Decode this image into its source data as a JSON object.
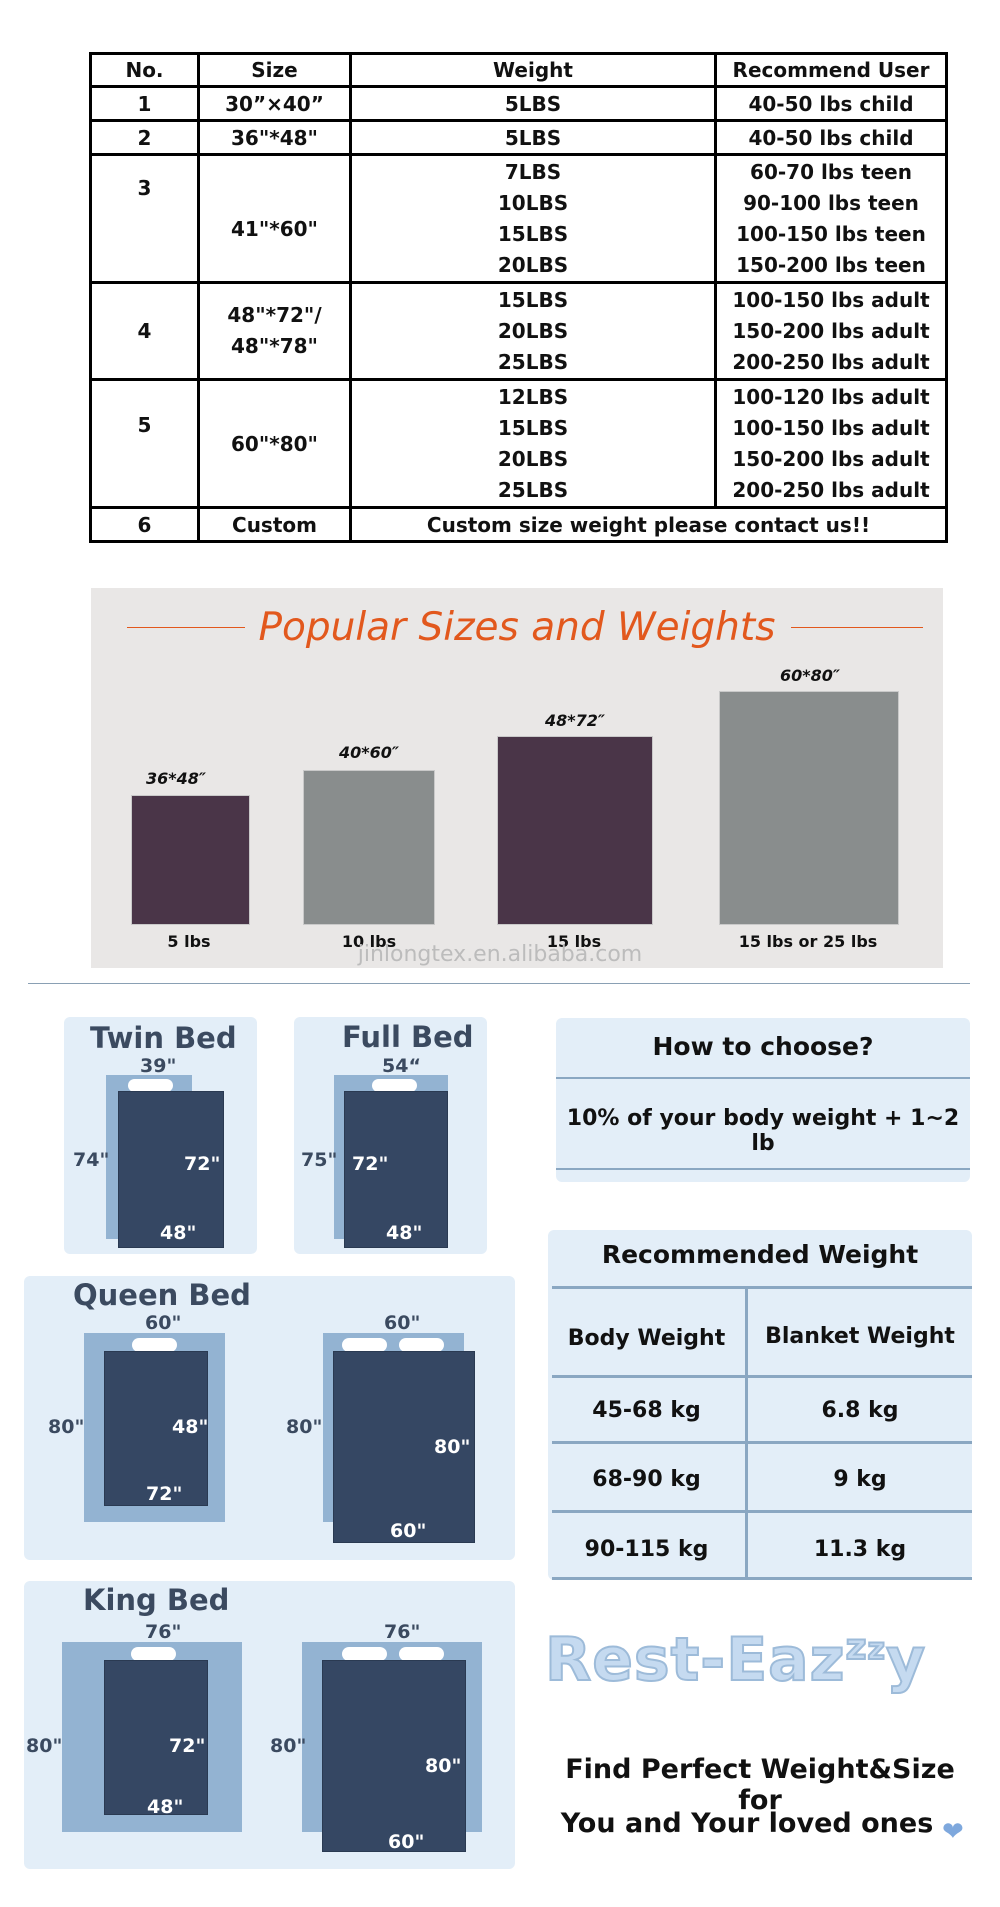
{
  "size_table": {
    "headers": [
      "No.",
      "Size",
      "Weight",
      "Recommend User"
    ],
    "rows": [
      {
        "no": "1",
        "size": "30”×40”",
        "weights": [
          "5LBS"
        ],
        "users": [
          "40-50 lbs child"
        ]
      },
      {
        "no": "2",
        "size": "36\"*48\"",
        "weights": [
          "5LBS"
        ],
        "users": [
          "40-50 lbs child"
        ]
      },
      {
        "no": "3",
        "size": "41\"*60\"",
        "weights": [
          "7LBS",
          "10LBS",
          "15LBS",
          "20LBS"
        ],
        "users": [
          "60-70 lbs teen",
          "90-100 lbs teen",
          "100-150 lbs teen",
          "150-200 lbs teen"
        ]
      },
      {
        "no": "4",
        "size_lines": [
          "48\"*72\"/",
          "48\"*78\""
        ],
        "weights": [
          "15LBS",
          "20LBS",
          "25LBS"
        ],
        "users": [
          "100-150 lbs adult",
          "150-200 lbs adult",
          "200-250 lbs adult"
        ]
      },
      {
        "no": "5",
        "size": "60\"*80\"",
        "weights": [
          "12LBS",
          "15LBS",
          "20LBS",
          "25LBS"
        ],
        "users": [
          "100-120 lbs adult",
          "100-150 lbs adult",
          "150-200 lbs adult",
          "200-250 lbs adult"
        ]
      },
      {
        "no": "6",
        "size": "Custom",
        "note": "Custom size weight please contact us!!"
      }
    ]
  },
  "popular": {
    "title": "Popular Sizes and Weights",
    "items": [
      {
        "size": "36*48″",
        "weight": "5 lbs",
        "color": "#4a3548"
      },
      {
        "size": "40*60″",
        "weight": "10 lbs",
        "color": "#898d8d"
      },
      {
        "size": "48*72″",
        "weight": "15 lbs",
        "color": "#4a3548"
      },
      {
        "size": "60*80″",
        "weight": "15 lbs or 25 lbs",
        "color": "#898d8d"
      }
    ]
  },
  "watermark": "jinlongtex.en.alibaba.com",
  "beds": {
    "twin": {
      "title": "Twin Bed",
      "bed_width": "39\"",
      "bed_length": "74\"",
      "blanket_length": "72\"",
      "blanket_width": "48\""
    },
    "full": {
      "title": "Full Bed",
      "bed_width": "54“",
      "bed_length": "75\"",
      "blanket_length": "72\"",
      "blanket_width": "48\""
    },
    "queen": {
      "title": "Queen Bed",
      "a": {
        "bed_width": "60\"",
        "bed_length": "80\"",
        "blanket_length": "48\"",
        "blanket_width": "72\""
      },
      "b": {
        "bed_width": "60\"",
        "bed_length": "80\"",
        "blanket_length": "80\"",
        "blanket_width": "60\""
      }
    },
    "king": {
      "title": "King Bed",
      "a": {
        "bed_width": "76\"",
        "bed_length": "80\"",
        "blanket_length": "72\"",
        "blanket_width": "48\""
      },
      "b": {
        "bed_width": "76\"",
        "bed_length": "80\"",
        "blanket_length": "80\"",
        "blanket_width": "60\""
      }
    }
  },
  "how_to_choose": {
    "title": "How to choose?",
    "text": "10% of your body weight + 1~2 lb"
  },
  "recommended": {
    "title": "Recommended Weight",
    "headers": [
      "Body Weight",
      "Blanket Weight"
    ],
    "rows": [
      [
        "45-68 kg",
        "6.8 kg"
      ],
      [
        "68-90 kg",
        "9 kg"
      ],
      [
        "90-115 kg",
        "11.3 kg"
      ]
    ]
  },
  "brand": {
    "name_main": "Rest-Ea",
    "name_z1": "z",
    "name_z2": "z",
    "name_z3": "z",
    "name_end": "y"
  },
  "tagline": {
    "line1": "Find Perfect Weight&Size for",
    "line2": "You and Your loved ones"
  },
  "colors": {
    "accent_orange": "#e2581d",
    "panel_blue": "#e3eef8",
    "blanket_navy": "#354763",
    "heart": "#7ea8dd"
  }
}
